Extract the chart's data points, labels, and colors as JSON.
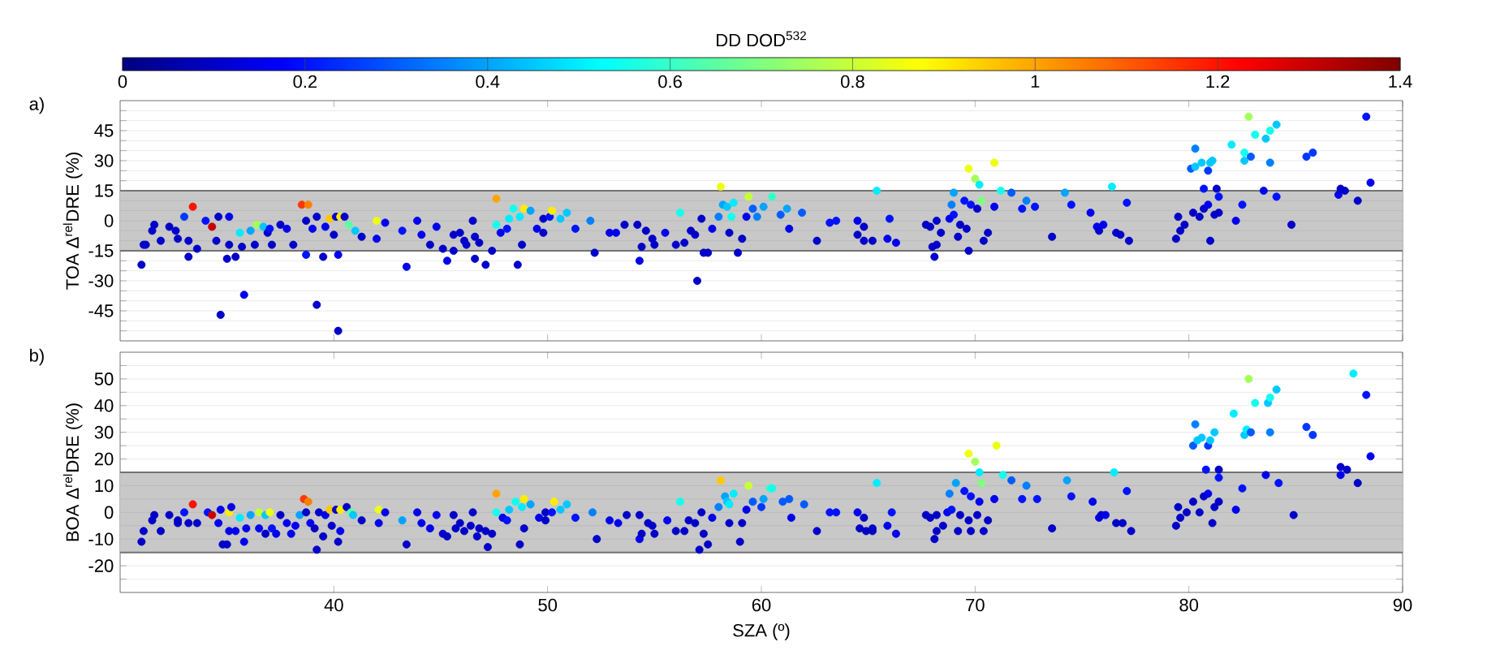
{
  "chart_data": [
    {
      "type": "scatter",
      "ylabel": "TOA Δ$^{rel}$DRE (%)",
      "annotations": [
        "a)"
      ],
      "clabel": "DD DOD$^{532}$",
      "clim": [
        0,
        1.4
      ],
      "cticks": [
        0,
        0.2,
        0.4,
        0.6,
        0.8,
        1,
        1.2,
        1.4
      ],
      "xlim": [
        30,
        90
      ],
      "xticks": [
        40,
        50,
        60,
        70,
        80,
        90
      ],
      "ylim": [
        -60,
        60
      ],
      "yticks": [
        {
          "value": -55,
          "label": null
        },
        {
          "value": -50,
          "label": null
        },
        -45,
        {
          "value": -40,
          "label": null
        },
        {
          "value": -35,
          "label": null
        },
        -30,
        {
          "value": -25,
          "label": null
        },
        {
          "value": -20,
          "label": null
        },
        -15,
        {
          "value": -10,
          "label": null
        },
        {
          "value": -5,
          "label": null
        },
        0,
        {
          "value": 5,
          "label": null
        },
        {
          "value": 10,
          "label": null
        },
        15,
        {
          "value": 20,
          "label": null
        },
        {
          "value": 25,
          "label": null
        },
        30,
        {
          "value": 35,
          "label": null
        },
        {
          "value": 40,
          "label": null
        },
        45,
        {
          "value": 50,
          "label": null
        },
        {
          "value": 55,
          "label": null
        }
      ],
      "tick_labels": "y",
      "grid": "y",
      "marker": "circle",
      "bands": [
        {
          "axis": "y",
          "from": -15,
          "to": 15,
          "color": "#c8c8c8"
        }
      ],
      "x": [
        31.0,
        31.1,
        31.2,
        31.5,
        31.6,
        31.9,
        32.3,
        32.6,
        32.7,
        33.0,
        33.2,
        33.2,
        33.4,
        33.6,
        34.0,
        34.3,
        34.6,
        34.5,
        34.7,
        35.0,
        35.1,
        35.1,
        35.4,
        35.6,
        35.7,
        35.8,
        36.1,
        36.4,
        36.3,
        36.7,
        36.9,
        37.0,
        37.1,
        37.5,
        37.8,
        38.1,
        38.5,
        38.8,
        38.7,
        38.7,
        39.0,
        39.2,
        39.2,
        39.5,
        39.6,
        39.8,
        40.0,
        40.1,
        40.2,
        40.2,
        40.3,
        40.5,
        40.7,
        41.0,
        41.3,
        42.0,
        42.0,
        42.4,
        43.2,
        43.4,
        43.9,
        44.1,
        44.5,
        44.8,
        45.1,
        45.3,
        45.6,
        45.6,
        45.9,
        46.1,
        46.2,
        46.5,
        46.6,
        46.6,
        46.8,
        47.1,
        47.4,
        47.6,
        47.6,
        47.8,
        48.1,
        48.2,
        48.4,
        48.6,
        48.7,
        48.8,
        48.9,
        49.2,
        49.5,
        49.8,
        49.8,
        50.1,
        50.2,
        50.6,
        50.9,
        51.3,
        52.0,
        52.2,
        52.9,
        53.2,
        53.6,
        54.2,
        54.3,
        54.4,
        54.6,
        54.9,
        55.0,
        55.5,
        56.0,
        56.2,
        56.4,
        56.7,
        56.9,
        57.0,
        57.2,
        57.3,
        57.5,
        57.7,
        58.0,
        58.1,
        58.2,
        58.4,
        58.5,
        58.6,
        58.7,
        58.9,
        59.1,
        59.4,
        59.3,
        59.6,
        59.8,
        60.1,
        60.5,
        60.9,
        61.2,
        61.3,
        61.9,
        62.6,
        63.2,
        63.5,
        64.5,
        64.5,
        64.8,
        64.8,
        65.2,
        65.4,
        65.9,
        66.0,
        66.3,
        67.7,
        67.9,
        68.0,
        68.1,
        68.2,
        68.2,
        68.4,
        68.8,
        68.9,
        69.0,
        69.0,
        69.2,
        69.3,
        69.5,
        69.6,
        69.7,
        69.7,
        69.8,
        70.0,
        70.1,
        70.2,
        70.3,
        70.4,
        70.6,
        70.9,
        70.9,
        71.2,
        71.7,
        72.2,
        72.4,
        72.8,
        73.6,
        74.2,
        74.5,
        75.4,
        75.7,
        75.8,
        76.0,
        76.4,
        76.6,
        76.8,
        77.1,
        77.2,
        79.4,
        79.5,
        79.6,
        79.8,
        80.1,
        80.2,
        80.3,
        80.3,
        80.5,
        80.6,
        80.7,
        80.7,
        80.9,
        80.9,
        81.0,
        81.0,
        81.1,
        81.2,
        81.3,
        81.4,
        81.4,
        82.0,
        82.2,
        82.5,
        82.6,
        82.6,
        82.8,
        82.9,
        83.1,
        83.5,
        83.6,
        83.8,
        83.8,
        84.1,
        84.1,
        84.8,
        85.5,
        85.8,
        87.0,
        87.1,
        87.3,
        87.9,
        88.3,
        88.5
      ],
      "values": [
        -22,
        -12,
        -12,
        -5,
        -2,
        -10,
        -3,
        -5,
        -9,
        2,
        -18,
        -10,
        7,
        -14,
        0,
        -3,
        2,
        -10,
        -47,
        -19,
        2,
        -12,
        -18,
        -6,
        -13,
        -37,
        -5,
        -2,
        -12,
        -3,
        -6,
        -4,
        -12,
        -2,
        -4,
        -12,
        8,
        8,
        0,
        -17,
        -4,
        2,
        -42,
        -18,
        -3,
        1,
        -7,
        2,
        -17,
        -55,
        2,
        2,
        -2,
        -5,
        -8,
        0,
        -9,
        -1,
        -5,
        -23,
        0,
        -7,
        -12,
        -3,
        -14,
        -20,
        -7,
        -15,
        -6,
        -10,
        -12,
        0,
        -8,
        -19,
        -11,
        -22,
        -15,
        11,
        -2,
        -6,
        -4,
        1,
        6,
        -22,
        2,
        -12,
        6,
        5,
        -4,
        1,
        -6,
        2,
        5,
        1,
        4,
        -4,
        0,
        -16,
        -6,
        -6,
        -2,
        -2,
        -20,
        -13,
        -5,
        -9,
        -12,
        -6,
        -12,
        4,
        -11,
        -5,
        -7,
        -30,
        1,
        -16,
        -16,
        -4,
        2,
        17,
        8,
        7,
        -6,
        2,
        9,
        -16,
        -9,
        12,
        2,
        6,
        2,
        7,
        12,
        3,
        6,
        -4,
        4,
        -10,
        -1,
        0,
        0,
        -7,
        -10,
        -3,
        -10,
        15,
        -9,
        1,
        -11,
        -2,
        -3,
        -13,
        -18,
        -12,
        0,
        -6,
        1,
        8,
        3,
        14,
        -8,
        -2,
        10,
        -4,
        26,
        -15,
        8,
        21,
        6,
        18,
        10,
        -10,
        -6,
        29,
        7,
        15,
        14,
        6,
        10,
        7,
        -8,
        14,
        8,
        4,
        -3,
        -5,
        -2,
        17,
        -6,
        -7,
        9,
        -10,
        -9,
        2,
        -5,
        -2,
        26,
        4,
        36,
        27,
        2,
        29,
        6,
        16,
        8,
        25,
        29,
        -10,
        30,
        3,
        16,
        12,
        4,
        38,
        0,
        8,
        30,
        34,
        52,
        32,
        43,
        15,
        41,
        45,
        29,
        48,
        12,
        -2,
        32,
        34,
        13,
        16,
        15,
        10,
        52,
        19
      ],
      "cvalues": [
        0.1,
        0.1,
        0.1,
        0.1,
        0.1,
        0.1,
        0.1,
        0.1,
        0.1,
        0.25,
        0.1,
        0.1,
        1.2,
        0.1,
        0.2,
        1.3,
        0.1,
        0.1,
        0.1,
        0.1,
        0.15,
        0.1,
        0.1,
        0.5,
        0.1,
        0.15,
        0.4,
        0.75,
        0.1,
        0.45,
        0.1,
        0.2,
        0.1,
        0.1,
        0.15,
        0.1,
        1.15,
        1.05,
        0.1,
        0.2,
        0.15,
        0.1,
        0.1,
        0.1,
        0.15,
        0.95,
        0.1,
        0.1,
        0.15,
        0.1,
        0.9,
        0.1,
        0.65,
        0.45,
        0.1,
        0.85,
        0.15,
        0.15,
        0.2,
        0.15,
        0.15,
        0.15,
        0.1,
        0.15,
        0.1,
        0.15,
        0.1,
        0.1,
        0.1,
        0.1,
        0.1,
        0.1,
        0.1,
        0.1,
        0.1,
        0.1,
        0.1,
        1.0,
        0.55,
        0.15,
        0.2,
        0.5,
        0.55,
        0.1,
        0.5,
        0.1,
        0.9,
        0.4,
        0.15,
        0.1,
        0.1,
        0.2,
        0.9,
        0.45,
        0.45,
        0.2,
        0.35,
        0.1,
        0.15,
        0.15,
        0.1,
        0.1,
        0.15,
        0.1,
        0.1,
        0.1,
        0.1,
        0.15,
        0.1,
        0.55,
        0.1,
        0.1,
        0.1,
        0.1,
        0.1,
        0.1,
        0.1,
        0.15,
        0.35,
        0.85,
        0.4,
        0.45,
        0.1,
        0.55,
        0.5,
        0.1,
        0.1,
        0.8,
        0.15,
        0.3,
        0.35,
        0.4,
        0.6,
        0.3,
        0.4,
        0.15,
        0.3,
        0.1,
        0.2,
        0.2,
        0.15,
        0.1,
        0.1,
        0.1,
        0.1,
        0.5,
        0.15,
        0.2,
        0.15,
        0.1,
        0.1,
        0.1,
        0.1,
        0.1,
        0.1,
        0.1,
        0.15,
        0.35,
        0.2,
        0.4,
        0.1,
        0.1,
        0.2,
        0.1,
        0.85,
        0.1,
        0.2,
        0.75,
        0.1,
        0.5,
        0.7,
        0.1,
        0.1,
        0.85,
        0.15,
        0.55,
        0.3,
        0.2,
        0.35,
        0.2,
        0.1,
        0.4,
        0.2,
        0.15,
        0.15,
        0.1,
        0.15,
        0.5,
        0.1,
        0.1,
        0.2,
        0.1,
        0.1,
        0.1,
        0.1,
        0.1,
        0.3,
        0.1,
        0.35,
        0.45,
        0.1,
        0.45,
        0.1,
        0.2,
        0.15,
        0.25,
        0.45,
        0.1,
        0.45,
        0.1,
        0.1,
        0.2,
        0.1,
        0.5,
        0.15,
        0.2,
        0.45,
        0.55,
        0.75,
        0.3,
        0.55,
        0.15,
        0.45,
        0.55,
        0.35,
        0.45,
        0.2,
        0.1,
        0.25,
        0.25,
        0.15,
        0.1,
        0.1,
        0.1,
        0.2,
        0.15
      ]
    },
    {
      "type": "scatter",
      "ylabel": "BOA Δ$^{rel}$DRE (%)",
      "xlabel": "SZA (º)",
      "annotations": [
        "b)"
      ],
      "xlim": [
        30,
        90
      ],
      "xticks": [
        40,
        50,
        60,
        70,
        80,
        90
      ],
      "ylim": [
        -30,
        60
      ],
      "yticks": [
        {
          "value": -25,
          "label": null
        },
        -20,
        {
          "value": -15,
          "label": null
        },
        -10,
        {
          "value": -5,
          "label": null
        },
        0,
        {
          "value": 5,
          "label": null
        },
        10,
        {
          "value": 15,
          "label": null
        },
        20,
        {
          "value": 25,
          "label": null
        },
        30,
        {
          "value": 35,
          "label": null
        },
        40,
        {
          "value": 45,
          "label": null
        },
        50,
        {
          "value": 55,
          "label": null
        }
      ],
      "grid": "y",
      "marker": "circle",
      "bands": [
        {
          "axis": "y",
          "from": -15,
          "to": 15,
          "color": "#c8c8c8"
        }
      ],
      "x": [
        31.0,
        31.1,
        31.5,
        31.6,
        31.9,
        32.3,
        32.7,
        32.7,
        33.0,
        33.2,
        33.4,
        33.6,
        34.1,
        34.3,
        34.6,
        34.7,
        34.8,
        35.0,
        35.1,
        35.1,
        35.2,
        35.4,
        35.6,
        35.8,
        35.9,
        36.1,
        36.5,
        36.5,
        36.8,
        36.8,
        37.0,
        37.1,
        37.3,
        37.5,
        37.8,
        38.0,
        38.2,
        38.4,
        38.6,
        38.8,
        38.7,
        38.9,
        39.1,
        39.2,
        39.3,
        39.5,
        39.6,
        39.8,
        39.9,
        40.1,
        40.2,
        40.3,
        40.3,
        40.6,
        40.8,
        40.9,
        41.3,
        42.1,
        42.1,
        42.4,
        43.2,
        43.4,
        43.9,
        44.1,
        44.5,
        44.8,
        45.1,
        45.3,
        45.6,
        45.7,
        45.9,
        46.1,
        46.4,
        46.5,
        46.7,
        46.8,
        47.1,
        47.2,
        47.4,
        47.6,
        47.6,
        47.9,
        48.1,
        48.2,
        48.5,
        48.7,
        48.8,
        48.9,
        48.9,
        49.2,
        49.6,
        49.9,
        49.9,
        50.2,
        50.3,
        50.6,
        50.9,
        51.3,
        52.1,
        52.3,
        52.9,
        53.3,
        53.7,
        54.3,
        54.3,
        54.4,
        54.7,
        54.9,
        55.0,
        55.6,
        56.0,
        56.2,
        56.4,
        56.6,
        56.9,
        57.1,
        57.2,
        57.3,
        57.5,
        57.7,
        58.0,
        58.1,
        58.3,
        58.4,
        58.5,
        58.5,
        58.7,
        59.0,
        59.1,
        59.4,
        59.3,
        59.6,
        60.0,
        60.1,
        60.4,
        60.5,
        61.0,
        61.3,
        61.4,
        62.0,
        62.6,
        63.2,
        63.5,
        64.5,
        64.8,
        64.6,
        64.9,
        65.2,
        65.2,
        65.4,
        65.9,
        66.1,
        66.3,
        67.7,
        67.9,
        68.1,
        68.2,
        68.2,
        68.5,
        68.7,
        68.8,
        68.9,
        69.1,
        69.2,
        69.3,
        69.5,
        69.7,
        69.7,
        69.8,
        69.8,
        70.0,
        70.1,
        70.2,
        70.2,
        70.3,
        70.4,
        70.6,
        70.9,
        71.0,
        71.3,
        71.7,
        72.2,
        72.4,
        72.9,
        73.6,
        74.3,
        74.5,
        75.5,
        75.8,
        75.9,
        76.1,
        76.5,
        76.6,
        76.9,
        77.1,
        77.3,
        79.4,
        79.5,
        79.6,
        79.9,
        80.2,
        80.2,
        80.3,
        80.4,
        80.5,
        80.6,
        80.7,
        80.8,
        80.9,
        80.9,
        81.0,
        81.1,
        81.2,
        81.2,
        81.4,
        81.4,
        81.4,
        82.1,
        82.2,
        82.5,
        82.6,
        82.7,
        82.8,
        82.9,
        83.1,
        83.6,
        83.7,
        83.8,
        83.8,
        84.1,
        84.2,
        84.9,
        85.5,
        85.8,
        87.1,
        87.1,
        87.4,
        87.9,
        87.7,
        88.3,
        88.5
      ],
      "values": [
        -11,
        -7,
        -3,
        -1,
        -7,
        -1,
        -4,
        -3,
        0,
        -4,
        3,
        -4,
        0,
        -1,
        -4,
        1,
        -12,
        -12,
        0,
        -7,
        2,
        -7,
        -2,
        -11,
        -6,
        -1,
        0,
        -6,
        -8,
        -1,
        0,
        -6,
        -8,
        -1,
        -4,
        -8,
        -5,
        -1,
        5,
        4,
        0,
        -4,
        -6,
        -14,
        0,
        -9,
        -1,
        1,
        -5,
        1,
        -11,
        1,
        -7,
        2,
        0,
        -1,
        -3,
        1,
        -4,
        0,
        -3,
        -12,
        0,
        -4,
        -6,
        -1,
        -8,
        -9,
        -1,
        -6,
        -4,
        -7,
        -5,
        0,
        -9,
        -6,
        -7,
        -13,
        -8,
        7,
        0,
        -2,
        -3,
        1,
        4,
        -12,
        2,
        -6,
        5,
        3,
        -2,
        0,
        -3,
        0,
        4,
        1,
        3,
        -2,
        0,
        -10,
        -3,
        -4,
        -1,
        -1,
        -10,
        -8,
        -4,
        -5,
        -8,
        -3,
        -7,
        4,
        -7,
        -3,
        -4,
        -14,
        0,
        -8,
        -12,
        -2,
        2,
        12,
        6,
        4,
        -4,
        3,
        7,
        -11,
        -4,
        10,
        1,
        4,
        2,
        5,
        9,
        9,
        4,
        5,
        -2,
        3,
        -7,
        0,
        0,
        0,
        -2,
        -6,
        -7,
        -6,
        -7,
        11,
        -5,
        0,
        -8,
        -1,
        -2,
        -10,
        -7,
        -1,
        -5,
        0,
        7,
        1,
        11,
        -7,
        -1,
        8,
        -3,
        22,
        -7,
        6,
        19,
        -1,
        4,
        15,
        11,
        -7,
        -3,
        5,
        25,
        14,
        12,
        5,
        10,
        5,
        -6,
        12,
        6,
        4,
        -2,
        -1,
        -1,
        15,
        -4,
        -4,
        8,
        -7,
        -5,
        2,
        -2,
        0,
        25,
        4,
        33,
        27,
        0,
        28,
        6,
        16,
        7,
        25,
        27,
        -4,
        30,
        2,
        16,
        13,
        4,
        37,
        1,
        9,
        29,
        31,
        50,
        30,
        41,
        14,
        41,
        43,
        30,
        46,
        11,
        -1,
        32,
        29,
        14,
        17,
        16,
        11,
        52,
        44,
        21
      ],
      "colors": [
        "#0000c8",
        "#0000c8",
        "#0000c8",
        "#0000c8",
        "#0000c8",
        "#0000c8",
        "#0000c8",
        "#0000c8",
        "#0012ff",
        "#0000c8",
        "#ff1200",
        "#0000c8",
        "#0012ff",
        "#c80000",
        "#0000ed",
        "#0000ed",
        "#0000c8",
        "#0000c8",
        "#ffed00",
        "#0000ed",
        "#0000ed",
        "#0000ed",
        "#00edff",
        "#0000ed",
        "#0000ed",
        "#00a4ff",
        "#c8ff37",
        "#0000ed",
        "#0000c8",
        "#00c8ff",
        "#edff12",
        "#0012ff",
        "#0000ed",
        "#0000c8",
        "#0000ed",
        "#0000ed",
        "#0000ed",
        "#00a4ff",
        "#ff3700",
        "#ff8000",
        "#0000c8",
        "#0000ed",
        "#0000c8",
        "#0000c8",
        "#0000c8",
        "#0000c8",
        "#0000ed",
        "#ffc800",
        "#0000c8",
        "#0000c8",
        "#0000c8",
        "#ffed00",
        "#0000ed",
        "#0000c8",
        "#5bffa4",
        "#00c8ff",
        "#0000c8",
        "#edff12",
        "#0000ed",
        "#0000ed",
        "#00a4ff",
        "#0000c8",
        "#0000ed",
        "#0000ed",
        "#0000ed",
        "#0000ed",
        "#0000c8",
        "#0000c8",
        "#0000c8",
        "#0000c8",
        "#0000c8",
        "#0000c8",
        "#0000c8",
        "#0000c8",
        "#0000c8",
        "#0000c8",
        "#0000c8",
        "#0000c8",
        "#0000c8",
        "#ffa400",
        "#12ffed",
        "#0000ed",
        "#0012ff",
        "#00c8ff",
        "#12ffed",
        "#0000c8",
        "#00edff",
        "#0000c8",
        "#ffed00",
        "#00a4ff",
        "#0000ed",
        "#0000c8",
        "#0000c8",
        "#0012ff",
        "#ffed00",
        "#00c8ff",
        "#00c8ff",
        "#0012ff",
        "#0080ff",
        "#0000c8",
        "#0000ed",
        "#0000ed",
        "#0000c8",
        "#0000c8",
        "#0000ed",
        "#0000c8",
        "#0000c8",
        "#0000c8",
        "#0000c8",
        "#0000ed",
        "#0000c8",
        "#12ffed",
        "#0000c8",
        "#0000c8",
        "#0000c8",
        "#0000c8",
        "#0000c8",
        "#0000c8",
        "#0000c8",
        "#0000ed",
        "#0080ff",
        "#ffc800",
        "#00a4ff",
        "#00c8ff",
        "#0000c8",
        "#00edff",
        "#00edff",
        "#0000c8",
        "#0000c8",
        "#c8ff37",
        "#0000ed",
        "#005bff",
        "#0037ff",
        "#00a4ff",
        "#37ffc8",
        "#12ffed",
        "#005bff",
        "#005bff",
        "#0000ed",
        "#005bff",
        "#0000c8",
        "#0012ff",
        "#0012ff",
        "#0000ed",
        "#0000c8",
        "#0000c8",
        "#0000c8",
        "#0000c8",
        "#0000c8",
        "#00edff",
        "#0000ed",
        "#0012ff",
        "#0000ed",
        "#0000c8",
        "#0000c8",
        "#0000c8",
        "#0000c8",
        "#0000c8",
        "#0000c8",
        "#0000ed",
        "#0080ff",
        "#0012ff",
        "#00a4ff",
        "#0000c8",
        "#0000c8",
        "#0012ff",
        "#0000c8",
        "#edff12",
        "#0000c8",
        "#0012ff",
        "#a4ff5b",
        "#0000c8",
        "#0000ed",
        "#00edff",
        "#80ff80",
        "#0000c8",
        "#0000c8",
        "#0000ed",
        "#edff12",
        "#12ffed",
        "#005bff",
        "#0012ff",
        "#0080ff",
        "#0012ff",
        "#0000c8",
        "#00a4ff",
        "#0012ff",
        "#0000ed",
        "#0000ed",
        "#0000c8",
        "#0000ed",
        "#00edff",
        "#0000c8",
        "#0000c8",
        "#0012ff",
        "#0000c8",
        "#0000c8",
        "#0000c8",
        "#0000c8",
        "#0000c8",
        "#005bff",
        "#0000c8",
        "#0080ff",
        "#00c8ff",
        "#0000c8",
        "#00c8ff",
        "#0000c8",
        "#0012ff",
        "#0000ed",
        "#0037ff",
        "#00c8ff",
        "#0000c8",
        "#00c8ff",
        "#0000c8",
        "#0000c8",
        "#0012ff",
        "#0000c8",
        "#00edff",
        "#0000ed",
        "#0012ff",
        "#00c8ff",
        "#00edff",
        "#a4ff5b",
        "#005bff",
        "#12ffed",
        "#0000ed",
        "#00c8ff",
        "#12ffed",
        "#0080ff",
        "#00c8ff",
        "#0012ff",
        "#0000c8",
        "#0037ff",
        "#0037ff",
        "#0000ed",
        "#0000c8",
        "#0000c8",
        "#0000c8",
        "#00edff",
        "#0012ff",
        "#0000ed"
      ]
    }
  ]
}
